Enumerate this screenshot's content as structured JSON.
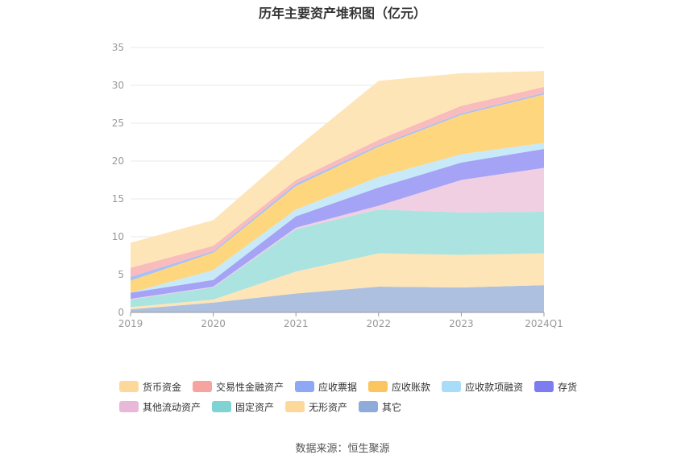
{
  "title": "历年主要资产堆积图（亿元）",
  "source": "数据来源：恒生聚源",
  "colors": {
    "axis": "#999999",
    "grid": "#e8e8e8",
    "tick_text": "#999999"
  },
  "chart_data": {
    "type": "area",
    "stacked": true,
    "categories": [
      "2019",
      "2020",
      "2021",
      "2022",
      "2023",
      "2024Q1"
    ],
    "ylim": [
      0,
      35
    ],
    "yticks": [
      0,
      5,
      10,
      15,
      20,
      25,
      30,
      35
    ],
    "grid": true,
    "legend_position": "bottom",
    "series": [
      {
        "name": "其它",
        "color": "#adc0e0",
        "legend_color": "#8eabd9",
        "values": [
          0.4,
          1.3,
          2.5,
          3.4,
          3.3,
          3.6
        ]
      },
      {
        "name": "无形资产",
        "color": "#fde5b8",
        "legend_color": "#fdd89b",
        "values": [
          0.3,
          0.4,
          2.9,
          4.4,
          4.3,
          4.2
        ]
      },
      {
        "name": "固定资产",
        "color": "#abe3e0",
        "legend_color": "#80d3d3",
        "values": [
          1.0,
          1.6,
          5.6,
          5.8,
          5.6,
          5.5
        ]
      },
      {
        "name": "其他流动资产",
        "color": "#f0cfe3",
        "legend_color": "#e8b8d8",
        "values": [
          0.1,
          0.1,
          0.2,
          0.5,
          4.3,
          5.8
        ]
      },
      {
        "name": "存货",
        "color": "#a4a3f5",
        "legend_color": "#7d7def",
        "values": [
          0.8,
          0.9,
          1.5,
          2.4,
          2.3,
          2.5
        ]
      },
      {
        "name": "应收款项融资",
        "color": "#c8e9f8",
        "legend_color": "#a8dcf7",
        "values": [
          0.0,
          1.3,
          0.9,
          1.4,
          1.1,
          0.8
        ]
      },
      {
        "name": "应收账款",
        "color": "#fdd67e",
        "legend_color": "#fbc55f",
        "values": [
          1.6,
          2.3,
          3.1,
          4.0,
          5.2,
          6.4
        ]
      },
      {
        "name": "应收票据",
        "color": "#a9bff7",
        "legend_color": "#8ea8f5",
        "values": [
          0.5,
          0.2,
          0.3,
          0.2,
          0.2,
          0.2
        ]
      },
      {
        "name": "交易性金融资产",
        "color": "#f9bcbc",
        "legend_color": "#f6a4a0",
        "values": [
          1.2,
          0.7,
          0.5,
          0.7,
          1.0,
          0.8
        ]
      },
      {
        "name": "货币资金",
        "color": "#fde5b8",
        "legend_color": "#fdd89b",
        "values": [
          3.3,
          3.4,
          4.2,
          7.8,
          4.3,
          2.1
        ]
      }
    ]
  }
}
